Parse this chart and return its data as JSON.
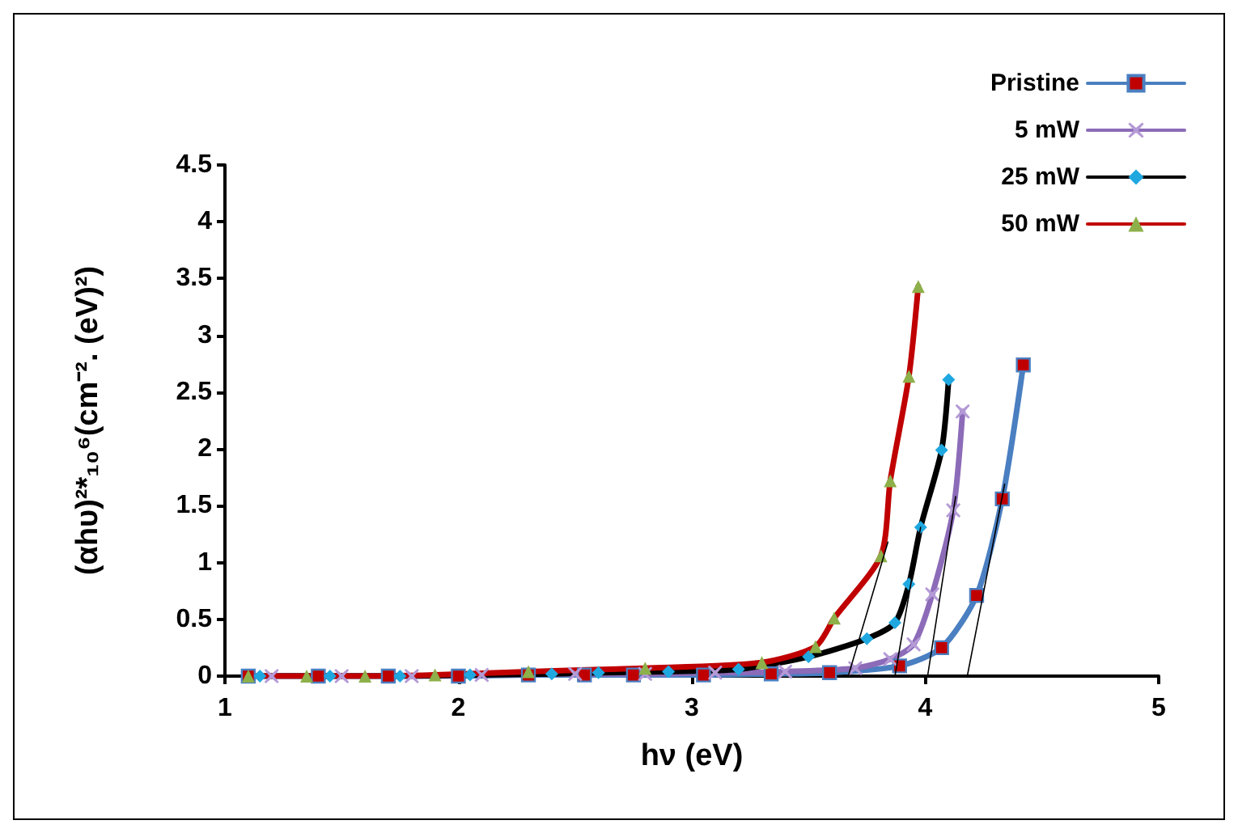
{
  "chart_data": {
    "type": "line",
    "xlabel": "hν (eV)",
    "ylabel": "(αhυ)²*₁₀⁶(cm⁻². (eV)²)",
    "xlim": [
      1,
      5
    ],
    "xticks": [
      1,
      2,
      3,
      4,
      5
    ],
    "ylim": [
      0,
      4.5
    ],
    "yticks": [
      0,
      0.5,
      1,
      1.5,
      2,
      2.5,
      3,
      3.5,
      4,
      4.5
    ],
    "grid": false,
    "legend": "top right",
    "line_style": "solid",
    "series": [
      {
        "name": "Pristine",
        "color": "#4a7fc1",
        "marker": "square",
        "x": [
          1.1,
          1.4,
          1.7,
          2.0,
          2.3,
          2.54,
          2.75,
          3.05,
          3.34,
          3.59,
          3.89,
          4.07,
          4.22,
          4.33,
          4.42
        ],
        "values": [
          0,
          0,
          0,
          0,
          0.01,
          0.01,
          0.01,
          0.01,
          0.02,
          0.03,
          0.09,
          0.25,
          0.71,
          1.56,
          2.74
        ]
      },
      {
        "name": "5 mW",
        "color": "#8c6bb8",
        "marker": "cross",
        "x": [
          1.2,
          1.5,
          1.8,
          2.1,
          2.5,
          2.8,
          3.1,
          3.4,
          3.7,
          3.85,
          3.95,
          4.03,
          4.12,
          4.16
        ],
        "values": [
          0,
          0,
          0,
          0.01,
          0.02,
          0.02,
          0.03,
          0.04,
          0.07,
          0.15,
          0.28,
          0.72,
          1.46,
          2.33
        ]
      },
      {
        "name": "25 mW",
        "color": "#000000",
        "marker": "diamond",
        "x": [
          1.15,
          1.45,
          1.75,
          2.05,
          2.4,
          2.6,
          2.9,
          3.2,
          3.5,
          3.75,
          3.87,
          3.93,
          3.98,
          4.07,
          4.1
        ],
        "values": [
          0,
          0,
          0,
          0.01,
          0.02,
          0.03,
          0.04,
          0.06,
          0.17,
          0.33,
          0.47,
          0.81,
          1.31,
          1.99,
          2.61
        ]
      },
      {
        "name": "50 mW",
        "color": "#c00000",
        "marker": "triangle",
        "x": [
          1.1,
          1.35,
          1.6,
          1.9,
          2.3,
          2.8,
          3.3,
          3.53,
          3.61,
          3.81,
          3.85,
          3.93,
          3.97
        ],
        "values": [
          0,
          0,
          0,
          0.01,
          0.04,
          0.07,
          0.12,
          0.26,
          0.51,
          1.06,
          1.72,
          2.64,
          3.43
        ]
      },
      {
        "color": "#000000",
        "marker": "none",
        "x": [
          3.67,
          3.84
        ],
        "values": [
          0,
          1.18
        ]
      },
      {
        "color": "#000000",
        "marker": "none",
        "x": [
          3.87,
          3.98
        ],
        "values": [
          0,
          1.31
        ]
      },
      {
        "color": "#000000",
        "marker": "none",
        "x": [
          4.01,
          4.13
        ],
        "values": [
          0,
          1.58
        ]
      },
      {
        "color": "#000000",
        "marker": "none",
        "x": [
          4.18,
          4.34
        ],
        "values": [
          0,
          1.69
        ]
      }
    ]
  }
}
